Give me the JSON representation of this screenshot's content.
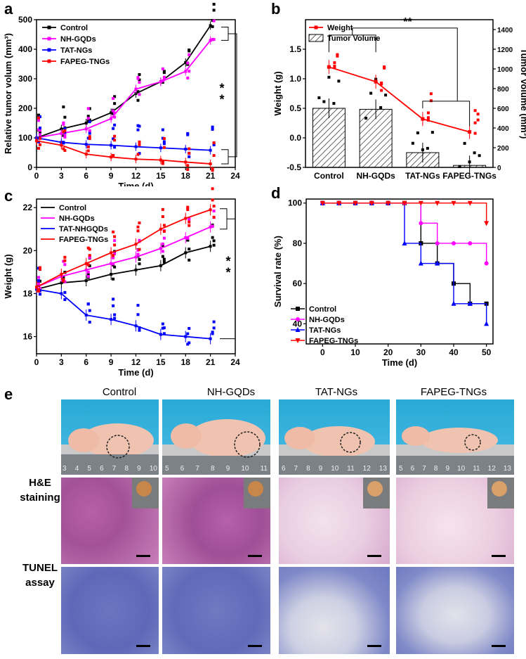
{
  "panel_letters": {
    "a": "a",
    "b": "b",
    "c": "c",
    "d": "d",
    "e": "e"
  },
  "chart_data": [
    {
      "id": "a",
      "type": "line",
      "xlabel": "Time (d)",
      "ylabel": "Relative tumor volum (mm³)",
      "xlim": [
        0,
        24
      ],
      "ylim": [
        0,
        500
      ],
      "xticks": [
        0,
        3,
        6,
        9,
        12,
        15,
        18,
        21,
        24
      ],
      "yticks": [
        0,
        100,
        200,
        300,
        400,
        500
      ],
      "x": [
        0,
        3,
        6,
        9,
        12,
        15,
        18,
        21
      ],
      "series": [
        {
          "name": "Control",
          "color": "#000000",
          "values": [
            100,
            130,
            150,
            185,
            250,
            290,
            355,
            480
          ]
        },
        {
          "name": "NH-GQDs",
          "color": "#ff00ff",
          "values": [
            100,
            115,
            130,
            165,
            265,
            290,
            325,
            430
          ]
        },
        {
          "name": "TAT-NGs",
          "color": "#0000ff",
          "values": [
            100,
            85,
            78,
            75,
            70,
            66,
            62,
            58
          ]
        },
        {
          "name": "FAPEG-TNGs",
          "color": "#ff0000",
          "values": [
            90,
            75,
            45,
            35,
            28,
            25,
            18,
            12
          ]
        }
      ],
      "significance": "**"
    },
    {
      "id": "b",
      "type": "bar",
      "categories": [
        "Control",
        "NH-GQDs",
        "TAT-NGs",
        "FAPEG-TNGs"
      ],
      "bar_series": {
        "name": "Tumor Volume",
        "axis": "right",
        "values": [
          600,
          590,
          150,
          20
        ]
      },
      "line_series": {
        "name": "Weight",
        "axis": "left",
        "color": "#ff0000",
        "values": [
          1.2,
          0.95,
          0.32,
          0.1
        ]
      },
      "ylabel": "Weight (g)",
      "y2label": "Tumor Volume (mm³)",
      "ylim": [
        -0.5,
        2.0
      ],
      "yticks": [
        -0.5,
        0.0,
        0.5,
        1.0,
        1.5
      ],
      "y2lim": [
        0,
        1500
      ],
      "y2ticks": [
        0,
        200,
        400,
        600,
        800,
        1000,
        1200,
        1400
      ],
      "significance": "**"
    },
    {
      "id": "c",
      "type": "line",
      "xlabel": "Time (d)",
      "ylabel": "Weight (g)",
      "xlim": [
        0,
        24
      ],
      "ylim": [
        15.2,
        22.4
      ],
      "xticks": [
        0,
        3,
        6,
        9,
        12,
        15,
        18,
        21,
        24
      ],
      "yticks": [
        16,
        18,
        20,
        22
      ],
      "x": [
        0,
        3,
        6,
        9,
        12,
        15,
        18,
        21
      ],
      "series": [
        {
          "name": "Control",
          "color": "#000000",
          "values": [
            18.2,
            18.5,
            18.6,
            18.9,
            19.1,
            19.3,
            19.9,
            20.2
          ]
        },
        {
          "name": "NH-GQDs",
          "color": "#ff00ff",
          "values": [
            18.3,
            18.8,
            19.1,
            19.4,
            19.7,
            20.1,
            20.6,
            21.1
          ]
        },
        {
          "name": "TAT-NHGQDs",
          "color": "#0000ff",
          "values": [
            18.2,
            18.0,
            17.0,
            16.8,
            16.5,
            16.1,
            16.0,
            15.9
          ]
        },
        {
          "name": "FAPEG-TNGs",
          "color": "#ff0000",
          "values": [
            18.3,
            18.9,
            19.4,
            19.9,
            20.3,
            21.0,
            21.5,
            21.9
          ]
        }
      ],
      "significance": "**"
    },
    {
      "id": "d",
      "type": "line",
      "xlabel": "Time (d)",
      "ylabel": "Survival rate (%)",
      "xlim": [
        -5,
        52
      ],
      "ylim": [
        30,
        102
      ],
      "xticks": [
        0,
        10,
        20,
        30,
        40,
        50
      ],
      "yticks": [
        40,
        60,
        80,
        100
      ],
      "series": [
        {
          "name": "Control",
          "color": "#000000",
          "x": [
            0,
            5,
            10,
            15,
            20,
            25,
            30,
            35,
            40,
            45,
            50
          ],
          "values": [
            100,
            100,
            100,
            100,
            100,
            100,
            80,
            70,
            60,
            50,
            50
          ]
        },
        {
          "name": "NH-GQDs",
          "color": "#ff00ff",
          "x": [
            0,
            5,
            10,
            15,
            20,
            25,
            30,
            35,
            40,
            45,
            50
          ],
          "values": [
            100,
            100,
            100,
            100,
            100,
            100,
            90,
            80,
            80,
            80,
            70
          ]
        },
        {
          "name": "TAT-NGs",
          "color": "#0000ff",
          "x": [
            0,
            5,
            10,
            15,
            20,
            25,
            30,
            35,
            40,
            45,
            50
          ],
          "values": [
            100,
            100,
            100,
            100,
            100,
            80,
            70,
            70,
            50,
            50,
            40
          ]
        },
        {
          "name": "FAPEG-TNGs",
          "color": "#ff0000",
          "x": [
            0,
            5,
            10,
            15,
            20,
            25,
            30,
            35,
            40,
            45,
            50
          ],
          "values": [
            100,
            100,
            100,
            100,
            100,
            100,
            100,
            100,
            100,
            100,
            90
          ]
        }
      ]
    }
  ],
  "panel_e": {
    "columns": [
      "Control",
      "NH-GQDs",
      "TAT-NGs",
      "FAPEG-TNGs"
    ],
    "rows": {
      "he_line1": "H&E",
      "he_line2": "staining",
      "tunel_line1": "TUNEL",
      "tunel_line2": "assay"
    },
    "ruler_numbers": [
      [
        "3",
        "4",
        "5",
        "6",
        "7",
        "8",
        "9",
        "10"
      ],
      [
        "5",
        "6",
        "7",
        "8",
        "9",
        "10",
        "11"
      ],
      [
        "6",
        "7",
        "8",
        "9",
        "10",
        "11",
        "12",
        "13"
      ],
      [
        "5",
        "6",
        "7",
        "8",
        "9",
        "10",
        "11",
        "12",
        "13"
      ]
    ]
  }
}
